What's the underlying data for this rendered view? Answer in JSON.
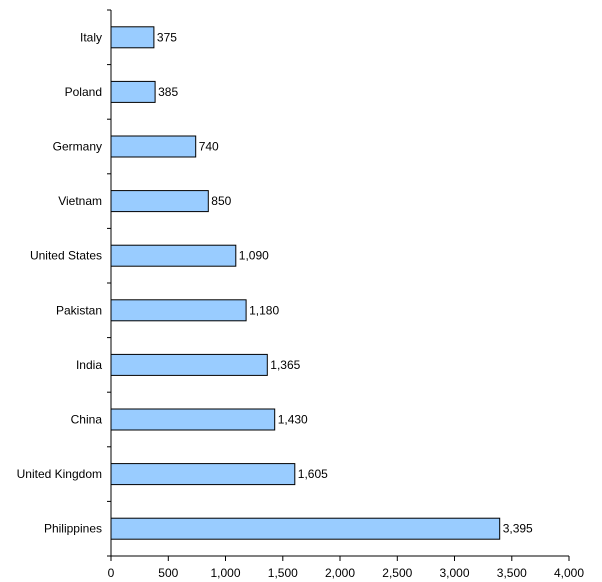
{
  "chart_data": {
    "type": "bar",
    "orientation": "horizontal",
    "categories": [
      "Italy",
      "Poland",
      "Germany",
      "Vietnam",
      "United States",
      "Pakistan",
      "India",
      "China",
      "United Kingdom",
      "Philippines"
    ],
    "values": [
      375,
      385,
      740,
      850,
      1090,
      1180,
      1365,
      1430,
      1605,
      3395
    ],
    "value_labels": [
      "375",
      "385",
      "740",
      "850",
      "1,090",
      "1,180",
      "1,365",
      "1,430",
      "1,605",
      "3,395"
    ],
    "xlim": [
      0,
      4000
    ],
    "x_ticks": [
      0,
      500,
      1000,
      1500,
      2000,
      2500,
      3000,
      3500,
      4000
    ],
    "x_tick_labels": [
      "0",
      "500",
      "1,000",
      "1,500",
      "2,000",
      "2,500",
      "3,000",
      "3,500",
      "4,000"
    ],
    "grid": false,
    "bar_color": "#99ccff",
    "bar_edge_color": "#000000"
  }
}
